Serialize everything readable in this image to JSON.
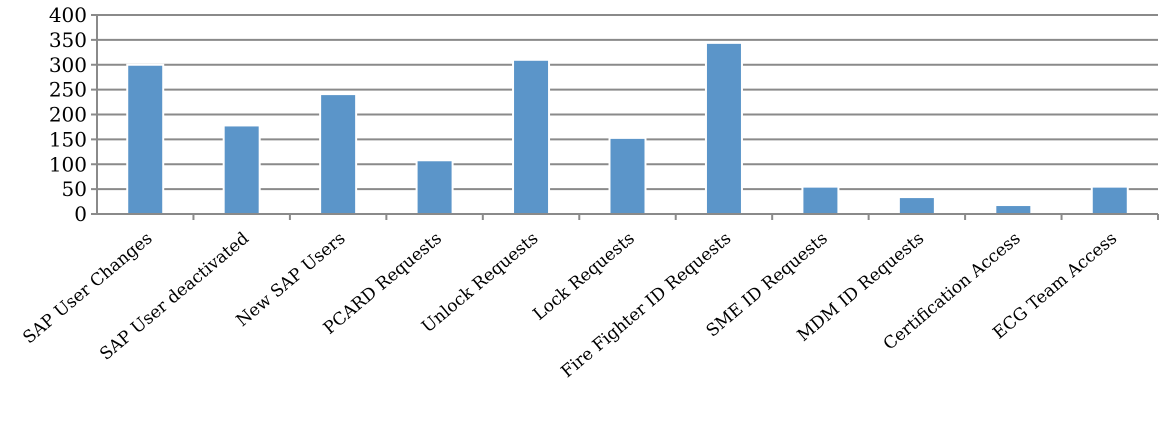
{
  "chart_data": {
    "type": "bar",
    "title": "",
    "xlabel": "",
    "ylabel": "",
    "ylim": [
      0,
      400
    ],
    "yticks": [
      0,
      50,
      100,
      150,
      200,
      250,
      300,
      350,
      400
    ],
    "grid": true,
    "categories": [
      "SAP User Changes",
      "SAP User deactivated",
      "New SAP Users",
      "PCARD Requests",
      "Unlock Requests",
      "Lock Requests",
      "Fire Fighter ID Requests",
      "SME ID Requests",
      "MDM ID Requests",
      "Certification Access",
      "ECG Team Access"
    ],
    "values": [
      300,
      178,
      241,
      108,
      310,
      153,
      344,
      55,
      34,
      18,
      55
    ],
    "colors": {
      "bar": "#5b95c9",
      "grid": "#8a8a8a"
    }
  }
}
